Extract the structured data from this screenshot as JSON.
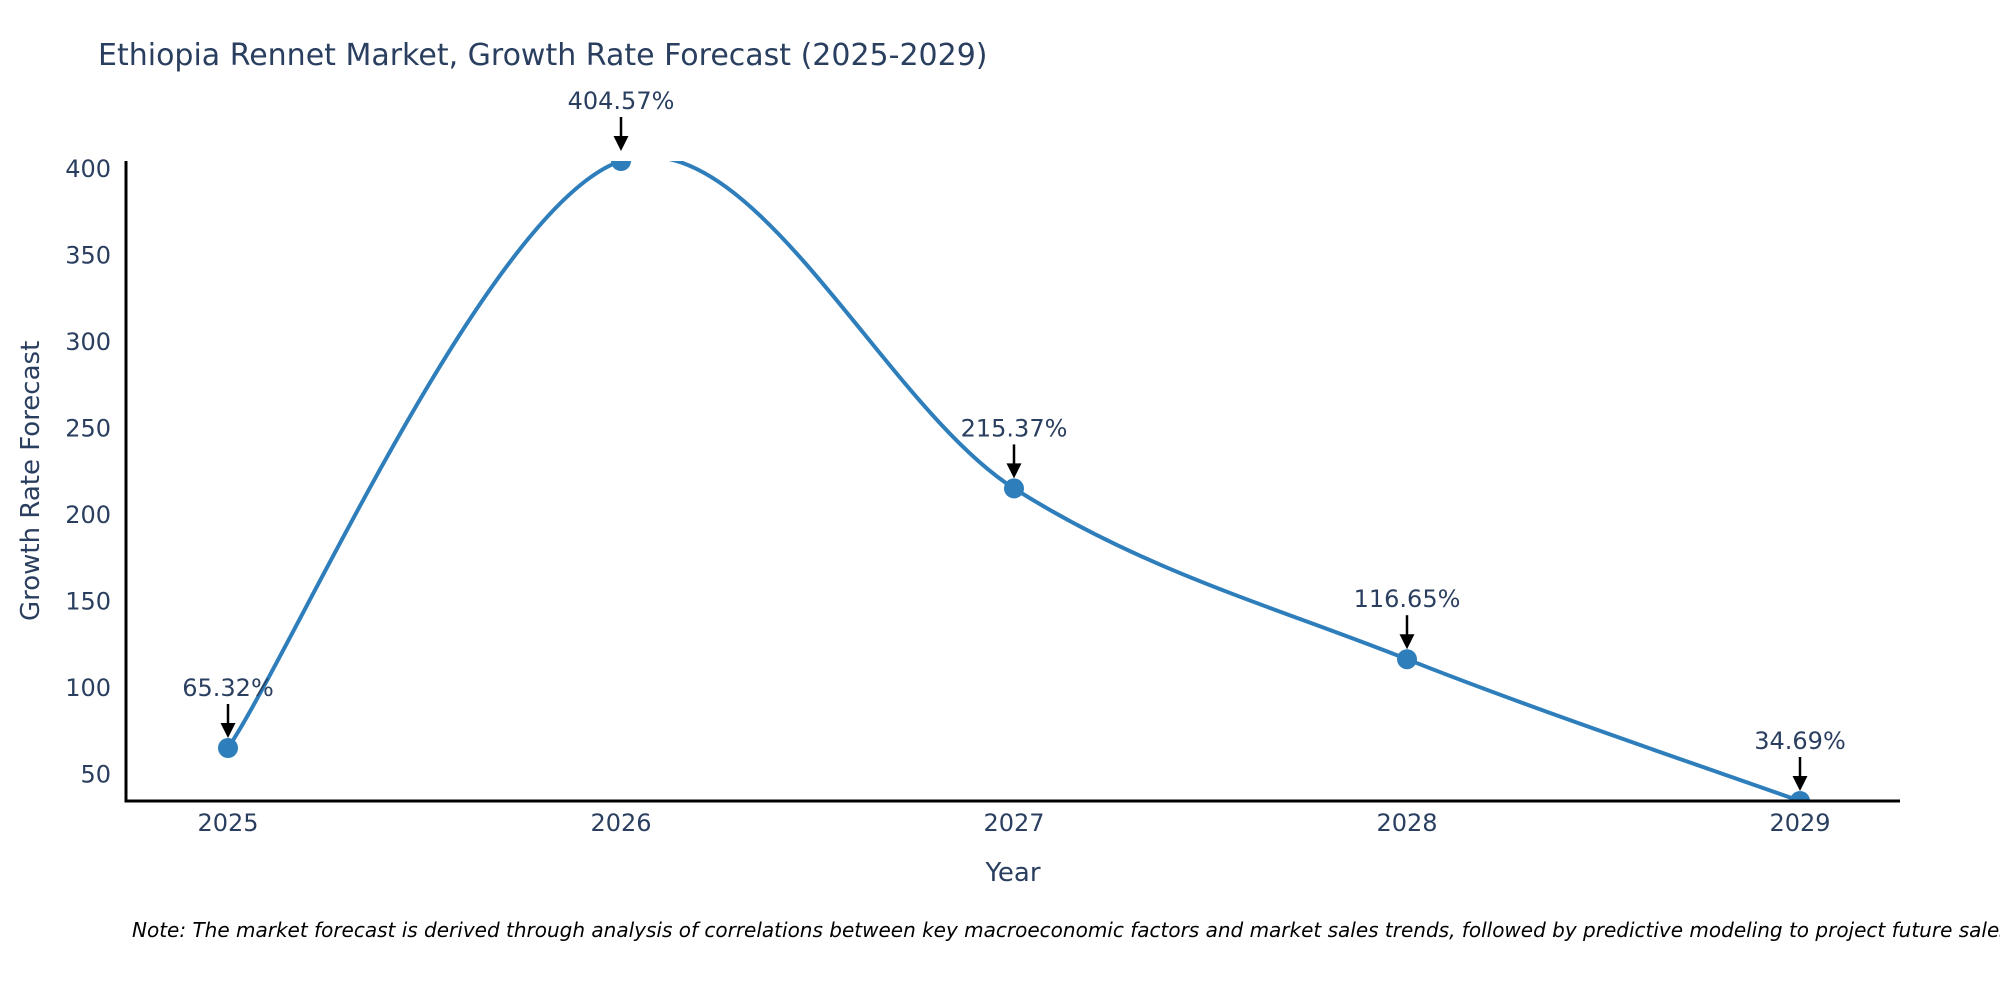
{
  "chart_data": {
    "type": "line",
    "title": "Ethiopia Rennet Market, Growth Rate Forecast (2025-2029)",
    "xlabel": "Year",
    "ylabel": "Growth Rate Forecast",
    "x": [
      2025,
      2026,
      2027,
      2028,
      2029
    ],
    "values": [
      65.32,
      404.57,
      215.37,
      116.65,
      34.69
    ],
    "point_labels": [
      "65.32%",
      "404.57%",
      "215.37%",
      "116.65%",
      "34.69%"
    ],
    "y_ticks": [
      50,
      100,
      150,
      200,
      250,
      300,
      350,
      400
    ],
    "x_ticks": [
      "2025",
      "2026",
      "2027",
      "2028",
      "2029"
    ],
    "ylim": [
      34.69,
      404.57
    ],
    "line_shape": "spline",
    "grid": false,
    "legend": "none",
    "colors": {
      "line": "#2e7ebc",
      "marker": "#2e7ebc",
      "axis": "#000000",
      "arrow": "#000000",
      "text": "#2a3f5f"
    }
  },
  "note": "Note: The market forecast is derived through analysis of correlations between key macroeconomic factors and market sales trends, followed by predictive modeling to project future sales."
}
